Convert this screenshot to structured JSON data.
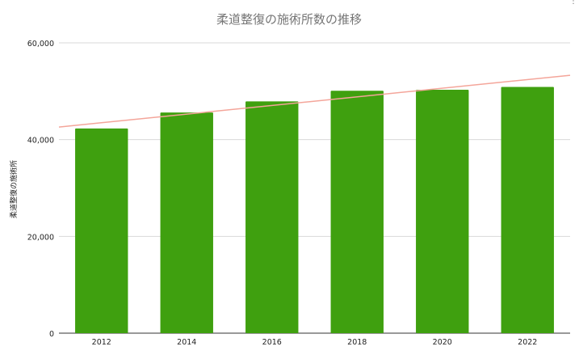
{
  "chart_data": {
    "type": "bar",
    "title": "柔道整復の施術所数の推移",
    "xlabel": "",
    "ylabel": "柔道整復の施術所",
    "categories": [
      "2012",
      "2014",
      "2016",
      "2018",
      "2020",
      "2022"
    ],
    "values": [
      42300,
      45600,
      47900,
      50100,
      50300,
      50900
    ],
    "ylim": [
      0,
      60000
    ],
    "yticks": [
      0,
      20000,
      40000,
      60000
    ],
    "ytick_labels": [
      "0",
      "20,000",
      "40,000",
      "60,000"
    ],
    "trendline": {
      "start": 42600,
      "end": 53300
    },
    "grid": true,
    "legend": "none",
    "colors": {
      "bar": "#3fa00f",
      "trendline": "#f4a59a",
      "grid": "#d9d9d9",
      "title": "#757575"
    }
  },
  "menu": {
    "icon": "more-vert-icon"
  }
}
